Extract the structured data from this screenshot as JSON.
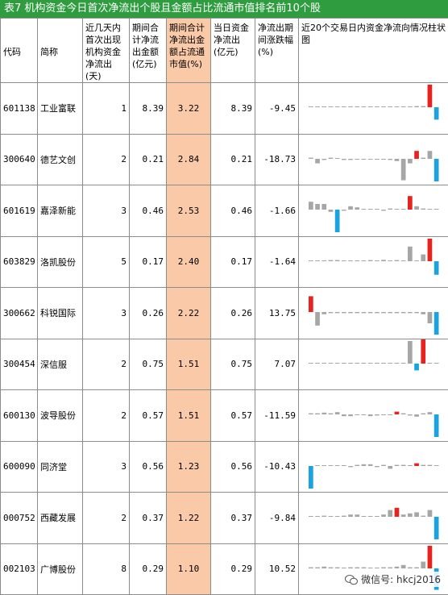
{
  "title": "表7  机构资金今日首次净流出个股且金额占比流通市值排名前10个股",
  "headers": {
    "code": "代码",
    "name": "简称",
    "days": "近几天内首次出现机构资金净流出(天)",
    "total": "期间合计净流出金额(亿元)",
    "ratio": "期间合计净流出金额占流通市值(%)",
    "today": "当日资金净流出(亿元)",
    "change": "净流出期间涨跌幅(%)",
    "chart": "近20个交易日内资金净流向情况柱状图"
  },
  "rows": [
    {
      "code": "601138",
      "name": "工业富联",
      "days": "1",
      "total": "8.39",
      "ratio": "3.22",
      "today": "8.39",
      "change": "-9.45"
    },
    {
      "code": "300640",
      "name": "德艺文创",
      "days": "2",
      "total": "0.21",
      "ratio": "2.84",
      "today": "0.21",
      "change": "-18.73"
    },
    {
      "code": "601619",
      "name": "嘉泽新能",
      "days": "3",
      "total": "0.46",
      "ratio": "2.53",
      "today": "0.46",
      "change": "-1.66"
    },
    {
      "code": "603829",
      "name": "洛凯股份",
      "days": "5",
      "total": "0.17",
      "ratio": "2.40",
      "today": "0.17",
      "change": "-1.64"
    },
    {
      "code": "300662",
      "name": "科锐国际",
      "days": "3",
      "total": "0.26",
      "ratio": "2.22",
      "today": "0.26",
      "change": "13.75"
    },
    {
      "code": "300454",
      "name": "深信服",
      "days": "2",
      "total": "0.75",
      "ratio": "1.51",
      "today": "0.75",
      "change": "7.07"
    },
    {
      "code": "600130",
      "name": "波导股份",
      "days": "2",
      "total": "0.57",
      "ratio": "1.51",
      "today": "0.57",
      "change": "-11.59"
    },
    {
      "code": "600090",
      "name": "同济堂",
      "days": "3",
      "total": "0.56",
      "ratio": "1.23",
      "today": "0.56",
      "change": "-10.43"
    },
    {
      "code": "000752",
      "name": "西藏发展",
      "days": "2",
      "total": "0.37",
      "ratio": "1.22",
      "today": "0.37",
      "change": "-9.84"
    },
    {
      "code": "002103",
      "name": "广博股份",
      "days": "8",
      "total": "0.29",
      "ratio": "1.10",
      "today": "0.29",
      "change": "10.52"
    }
  ],
  "bar_colors": {
    "inflow_max": "#e8231f",
    "outflow_today": "#1aa3e0",
    "other": "#a6a6a6"
  },
  "sparklines": [
    [
      0,
      0,
      0,
      0,
      0,
      0,
      0,
      0,
      0,
      0,
      0,
      0,
      0,
      0,
      0,
      0,
      0.05,
      0.05,
      1.0,
      -0.55
    ],
    [
      0.05,
      -0.2,
      -0.05,
      0.05,
      0.02,
      -0.05,
      -0.05,
      -0.03,
      -0.03,
      -0.02,
      -0.02,
      -0.03,
      -0.05,
      -0.1,
      -0.95,
      -0.2,
      0.35,
      0.05,
      0.35,
      -1.0
    ],
    [
      0.35,
      0.25,
      0.25,
      -0.1,
      -1.0,
      -0.05,
      0.15,
      0.1,
      0.0,
      0.0,
      0.0,
      -0.05,
      0.05,
      0.0,
      0.0,
      0.6,
      0.15,
      0.05,
      0.0,
      0.0
    ],
    [
      0.03,
      0.03,
      0.04,
      0.05,
      0.05,
      0.0,
      0.0,
      0.02,
      0.0,
      0.05,
      0.03,
      0.06,
      0.0,
      0.05,
      0.0,
      0.65,
      0.0,
      0.3,
      1.0,
      -0.6
    ],
    [
      0.7,
      -0.6,
      -0.1,
      -0.05,
      -0.05,
      -0.05,
      -0.05,
      -0.05,
      -0.05,
      -0.05,
      -0.05,
      -0.05,
      -0.05,
      -0.05,
      -0.05,
      -0.05,
      -0.05,
      -0.1,
      -0.5,
      -1.0
    ],
    [
      0.02,
      0.02,
      0.02,
      0.02,
      0.02,
      0.02,
      0.02,
      0.02,
      0.02,
      0.02,
      0.02,
      0.02,
      0.02,
      0.02,
      0.02,
      1.0,
      -0.3,
      1.1,
      0.02,
      0.02
    ],
    [
      0.05,
      0.05,
      0.08,
      0.05,
      0.1,
      -0.08,
      -0.08,
      -0.03,
      -0.03,
      -0.08,
      -0.05,
      -0.03,
      -0.03,
      0.12,
      0.05,
      -0.05,
      -0.1,
      0.05,
      0.1,
      -1.0
    ],
    [
      -1.0,
      0.02,
      0.02,
      0.02,
      0.02,
      0.02,
      -0.05,
      0.05,
      0.08,
      0.08,
      -0.05,
      0.05,
      -0.12,
      0.05,
      0.05,
      0.0,
      0.12,
      0.05,
      0.05,
      0.03
    ],
    [
      0.0,
      0.0,
      0.05,
      0.0,
      0.0,
      0.05,
      0.1,
      0.1,
      0.0,
      0.0,
      0.0,
      0.1,
      0.3,
      0.4,
      0.1,
      0.15,
      0.2,
      0.05,
      0.3,
      -1.0
    ],
    [
      0.05,
      0.05,
      0.08,
      0.05,
      0.05,
      0.03,
      0.05,
      0.05,
      0.05,
      0.02,
      0.02,
      0.05,
      0.05,
      0.08,
      0.15,
      0.05,
      0.05,
      0.3,
      1.0,
      -0.95
    ]
  ],
  "watermark": "微信号: hkcj2016"
}
